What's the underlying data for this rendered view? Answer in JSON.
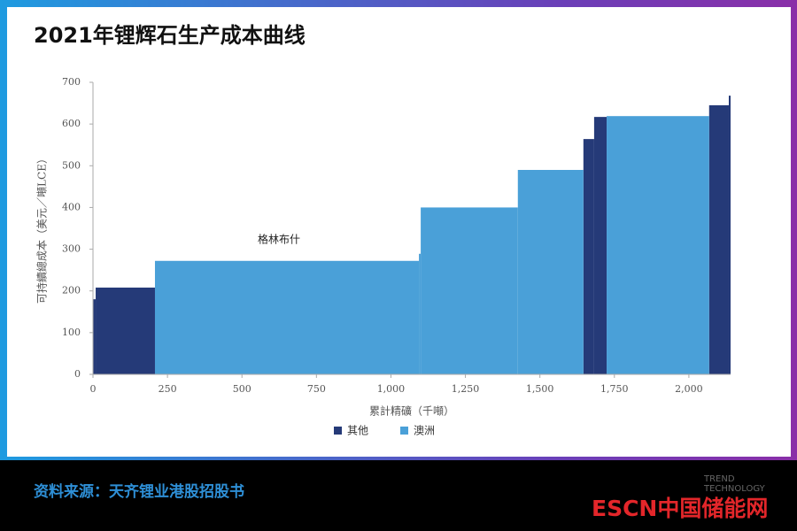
{
  "chart_data": {
    "type": "cost_curve",
    "title": "2021年锂辉石生产成本曲线",
    "y_label": "可持續總成本（美元／噸LCE）",
    "x_label": "累計精礦（千噸）",
    "annotation": "格林布什",
    "xlim": [
      0,
      2140
    ],
    "ylim": [
      0,
      700
    ],
    "xticks": [
      0,
      250,
      500,
      750,
      {
        "value": 1000,
        "label": "1,000"
      },
      {
        "value": 1250,
        "label": "1,250"
      },
      {
        "value": 1500,
        "label": "1,500"
      },
      {
        "value": 1750,
        "label": "1,750"
      },
      {
        "value": 2000,
        "label": "2,000"
      }
    ],
    "yticks": [
      0,
      100,
      200,
      300,
      400,
      500,
      600,
      700
    ],
    "series": [
      {
        "name": "其他",
        "color": "#253a78",
        "x0": [
          0,
          9,
          1646,
          1682,
          2068,
          2134
        ],
        "x1": [
          9,
          208,
          1682,
          1724,
          2134,
          2140
        ],
        "values": [
          180,
          208,
          564,
          617,
          645,
          668
        ]
      },
      {
        "name": "澳洲",
        "color": "#4aa0d8",
        "x0": [
          208,
          1094,
          1100,
          1426,
          1724
        ],
        "x1": [
          1094,
          1100,
          1426,
          1646,
          2068
        ],
        "values": [
          272,
          289,
          400,
          490,
          619
        ]
      }
    ]
  },
  "source": "资料来源：天齐锂业港股招股书",
  "watermark": [
    "TREND",
    "TECHNOLOGY",
    "ESCN中国储能网"
  ]
}
